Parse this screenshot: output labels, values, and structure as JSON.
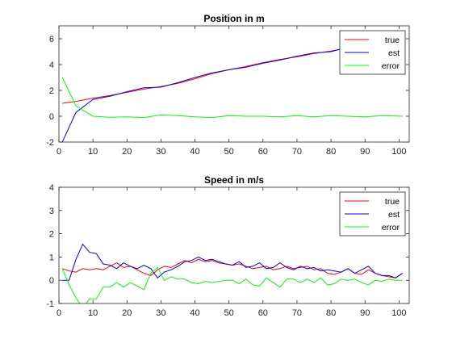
{
  "chart_data": [
    {
      "type": "line",
      "title": "Position in m",
      "xlabel": "",
      "ylabel": "",
      "xlim": [
        0,
        103
      ],
      "ylim": [
        -2,
        7
      ],
      "xticks": [
        0,
        10,
        20,
        30,
        40,
        50,
        60,
        70,
        80,
        90,
        100
      ],
      "yticks": [
        -2,
        0,
        2,
        4,
        6
      ],
      "grid": false,
      "legend_position": "top-right",
      "x": [
        1,
        5,
        10,
        15,
        20,
        25,
        30,
        35,
        40,
        45,
        50,
        55,
        60,
        65,
        70,
        75,
        80,
        85,
        90,
        95,
        101
      ],
      "series": [
        {
          "name": "true",
          "color": "#ff0000",
          "values": [
            1.0,
            1.15,
            1.4,
            1.6,
            1.85,
            2.1,
            2.3,
            2.55,
            2.9,
            3.3,
            3.6,
            3.85,
            4.15,
            4.4,
            4.6,
            4.85,
            5.05,
            5.3,
            5.55,
            5.9,
            6.1
          ]
        },
        {
          "name": "est",
          "color": "#0000ff",
          "values": [
            -2.0,
            0.3,
            1.3,
            1.55,
            1.9,
            2.2,
            2.25,
            2.6,
            3.0,
            3.35,
            3.6,
            3.8,
            4.1,
            4.35,
            4.65,
            4.9,
            5.0,
            5.35,
            5.6,
            5.85,
            6.1
          ]
        },
        {
          "name": "error",
          "color": "#00ff00",
          "values": [
            3.0,
            0.8,
            0.0,
            -0.08,
            -0.05,
            -0.1,
            0.1,
            0.05,
            -0.05,
            -0.1,
            0.05,
            0.0,
            0.0,
            -0.05,
            0.05,
            -0.05,
            0.05,
            0.0,
            -0.05,
            0.05,
            0.0
          ]
        }
      ]
    },
    {
      "type": "line",
      "title": "Speed in m/s",
      "xlabel": "",
      "ylabel": "",
      "xlim": [
        0,
        103
      ],
      "ylim": [
        -1,
        4
      ],
      "xticks": [
        0,
        10,
        20,
        30,
        40,
        50,
        60,
        70,
        80,
        90,
        100
      ],
      "yticks": [
        -1,
        0,
        1,
        2,
        3,
        4
      ],
      "grid": false,
      "legend_position": "top-right",
      "x": [
        1,
        3,
        5,
        7,
        9,
        11,
        13,
        15,
        17,
        19,
        21,
        23,
        25,
        27,
        29,
        31,
        33,
        35,
        37,
        39,
        41,
        43,
        45,
        47,
        49,
        51,
        53,
        55,
        57,
        59,
        61,
        63,
        65,
        67,
        69,
        71,
        73,
        75,
        77,
        79,
        81,
        83,
        85,
        87,
        89,
        91,
        93,
        95,
        97,
        99,
        101
      ],
      "series": [
        {
          "name": "true",
          "color": "#ff0000",
          "values": [
            0.5,
            0.4,
            0.35,
            0.5,
            0.45,
            0.5,
            0.45,
            0.6,
            0.75,
            0.55,
            0.6,
            0.45,
            0.3,
            0.2,
            0.45,
            0.6,
            0.55,
            0.7,
            0.85,
            0.75,
            0.9,
            0.8,
            0.85,
            0.75,
            0.7,
            0.65,
            0.7,
            0.6,
            0.5,
            0.55,
            0.6,
            0.45,
            0.5,
            0.6,
            0.5,
            0.55,
            0.6,
            0.45,
            0.5,
            0.3,
            0.25,
            0.35,
            0.5,
            0.3,
            0.25,
            0.45,
            0.3,
            0.2,
            0.15,
            0.1,
            0.3
          ]
        },
        {
          "name": "est",
          "color": "#0000ff",
          "values": [
            0.0,
            0.0,
            0.9,
            1.55,
            1.2,
            1.15,
            0.7,
            0.65,
            0.5,
            0.75,
            0.6,
            0.5,
            0.65,
            0.5,
            0.1,
            0.35,
            0.45,
            0.6,
            0.8,
            0.85,
            1.0,
            0.85,
            0.9,
            0.8,
            0.7,
            0.65,
            0.8,
            0.55,
            0.6,
            0.75,
            0.5,
            0.55,
            0.75,
            0.55,
            0.45,
            0.6,
            0.5,
            0.55,
            0.4,
            0.45,
            0.4,
            0.35,
            0.5,
            0.3,
            0.45,
            0.6,
            0.3,
            0.2,
            0.2,
            0.1,
            0.3
          ]
        },
        {
          "name": "error",
          "color": "#00ff00",
          "values": [
            0.5,
            -0.2,
            -0.75,
            -1.2,
            -0.8,
            -0.8,
            -0.3,
            -0.3,
            -0.1,
            -0.3,
            -0.1,
            -0.25,
            -0.4,
            0.3,
            0.55,
            0.0,
            0.15,
            0.05,
            0.05,
            -0.1,
            -0.15,
            -0.05,
            -0.1,
            -0.05,
            0.0,
            0.0,
            -0.15,
            0.05,
            -0.2,
            -0.25,
            0.1,
            -0.1,
            -0.3,
            0.05,
            0.05,
            -0.1,
            0.05,
            -0.1,
            0.1,
            -0.2,
            -0.15,
            0.05,
            0.0,
            0.05,
            -0.1,
            -0.2,
            0.0,
            -0.05,
            0.05,
            0.0,
            0.0
          ]
        }
      ]
    }
  ]
}
